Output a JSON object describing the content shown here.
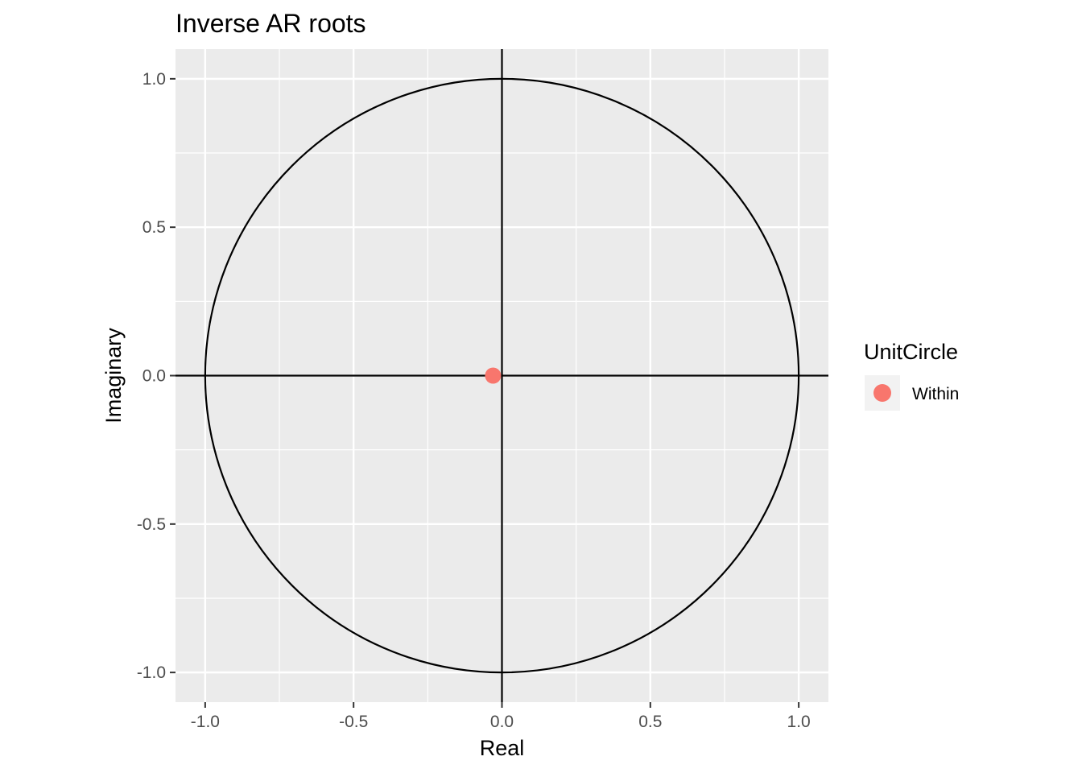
{
  "chart_data": {
    "type": "scatter",
    "title": "Inverse AR roots",
    "xlabel": "Real",
    "ylabel": "Imaginary",
    "xlim": [
      -1.1,
      1.1
    ],
    "ylim": [
      -1.1,
      1.1
    ],
    "x_ticks": [
      -1.0,
      -0.5,
      0.0,
      0.5,
      1.0
    ],
    "x_tick_labels": [
      "-1.0",
      "-0.5",
      "0.0",
      "0.5",
      "1.0"
    ],
    "y_ticks": [
      -1.0,
      -0.5,
      0.0,
      0.5,
      1.0
    ],
    "y_tick_labels": [
      "-1.0",
      "-0.5",
      "0.0",
      "0.5",
      "1.0"
    ],
    "grid": true,
    "reference_lines": {
      "horizontal": 0,
      "vertical": 0
    },
    "unit_circle": {
      "center": [
        0,
        0
      ],
      "radius": 1
    },
    "legend": {
      "title": "UnitCircle",
      "position": "right",
      "entries": [
        {
          "label": "Within",
          "color": "#F8766D"
        }
      ]
    },
    "series": [
      {
        "name": "Within",
        "color": "#F8766D",
        "points": [
          {
            "x": -0.03,
            "y": 0.0
          }
        ]
      }
    ]
  }
}
